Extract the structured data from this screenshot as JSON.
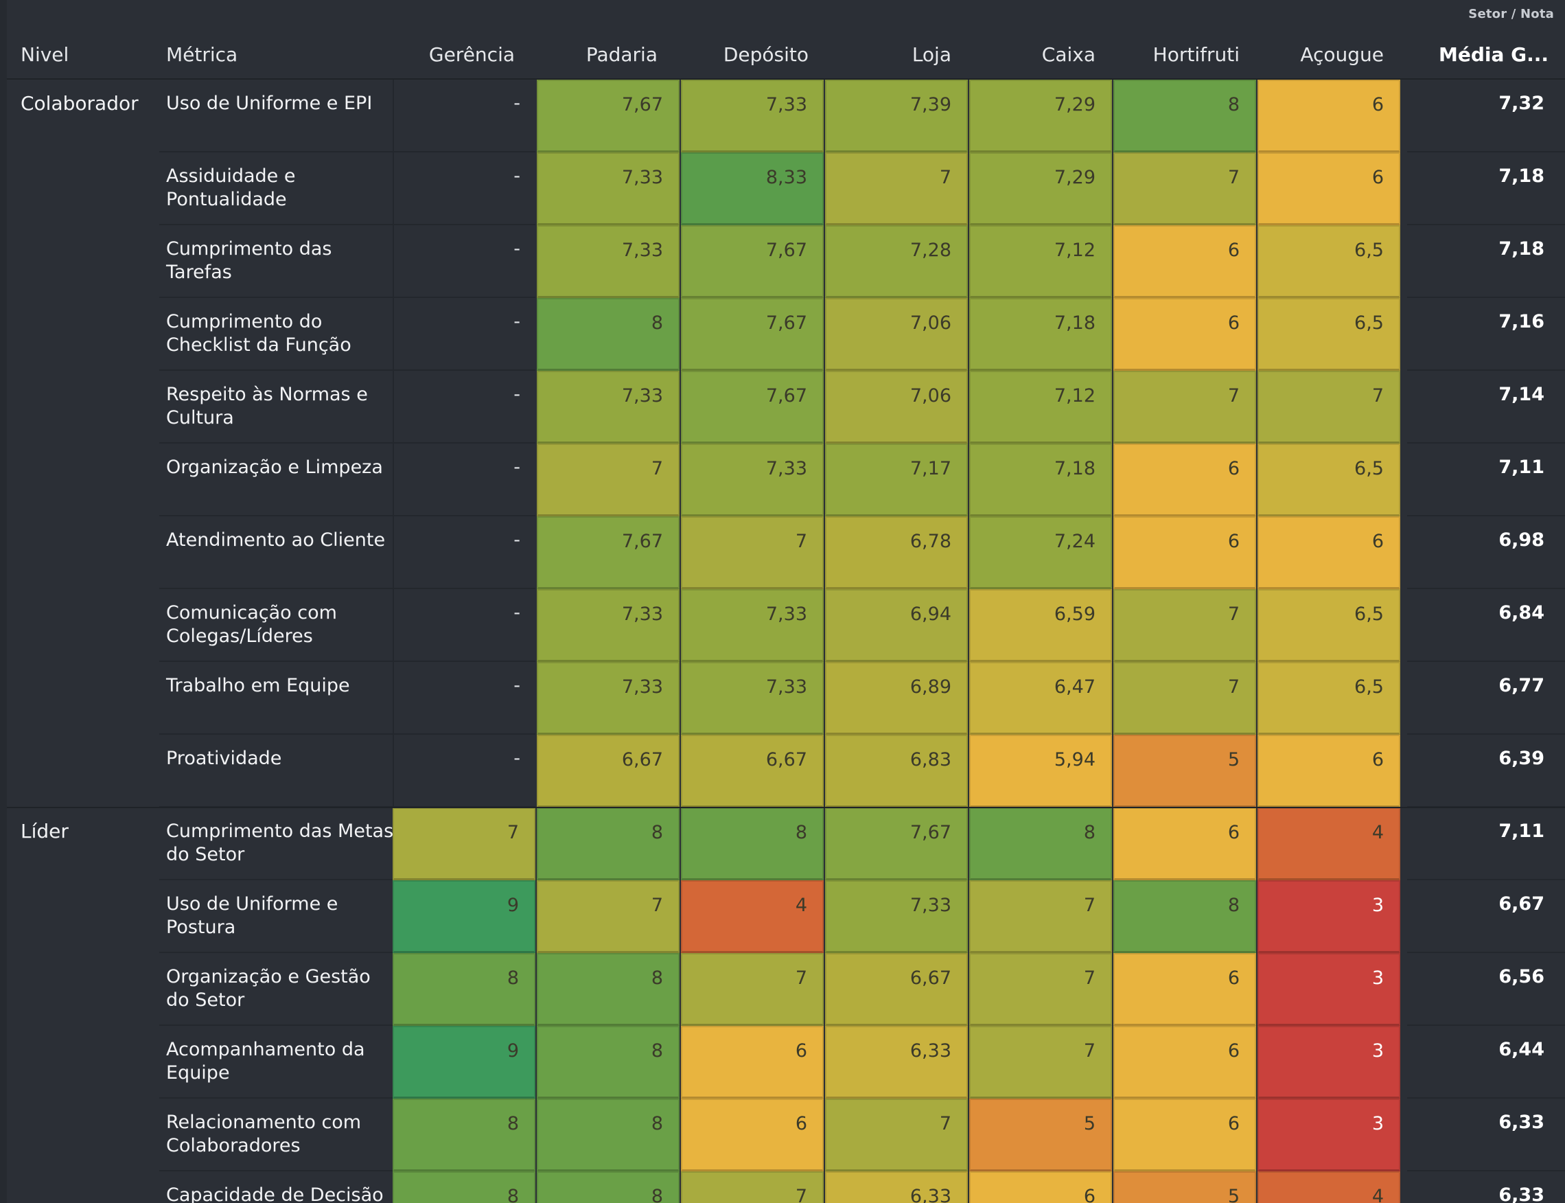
{
  "corner_label": "Setor / Nota",
  "headers": {
    "nivel": "Nivel",
    "metrica": "Métrica",
    "gerencia": "Gerência",
    "padaria": "Padaria",
    "deposito": "Depósito",
    "loja": "Loja",
    "caixa": "Caixa",
    "hortifruti": "Hortifruti",
    "acougue": "Açougue",
    "media": "Média G..."
  },
  "colors": {
    "background": "#2b2f36",
    "red": "#c9413c",
    "orange_red": "#d46737",
    "orange": "#df8e3a",
    "amber": "#e8b43f",
    "mustard": "#c9b23e",
    "olive_yellow": "#b3ad3d",
    "yellow_olive": "#a8ab3f",
    "olive": "#93a83f",
    "light_green": "#85a642",
    "green": "#6aa047",
    "strong_green": "#5a9d4b",
    "teal_green": "#3d9a5c"
  },
  "table": {
    "columns": [
      "gerencia",
      "padaria",
      "deposito",
      "loja",
      "caixa",
      "hortifruti",
      "acougue"
    ],
    "rows": [
      {
        "nivel": "Colaborador",
        "metric": "Uso de Uniforme e EPI",
        "values": [
          "-",
          "7,67",
          "7,33",
          "7,39",
          "7,29",
          "8",
          "6"
        ],
        "avg": "7,32"
      },
      {
        "nivel": "",
        "metric": "Assiduidade e Pontualidade",
        "values": [
          "-",
          "7,33",
          "8,33",
          "7",
          "7,29",
          "7",
          "6"
        ],
        "avg": "7,18"
      },
      {
        "nivel": "",
        "metric": "Cumprimento das Tarefas",
        "values": [
          "-",
          "7,33",
          "7,67",
          "7,28",
          "7,12",
          "6",
          "6,5"
        ],
        "avg": "7,18"
      },
      {
        "nivel": "",
        "metric": "Cumprimento do Checklist da Função",
        "values": [
          "-",
          "8",
          "7,67",
          "7,06",
          "7,18",
          "6",
          "6,5"
        ],
        "avg": "7,16"
      },
      {
        "nivel": "",
        "metric": "Respeito às Normas e Cultura",
        "values": [
          "-",
          "7,33",
          "7,67",
          "7,06",
          "7,12",
          "7",
          "7"
        ],
        "avg": "7,14"
      },
      {
        "nivel": "",
        "metric": "Organização e Limpeza",
        "values": [
          "-",
          "7",
          "7,33",
          "7,17",
          "7,18",
          "6",
          "6,5"
        ],
        "avg": "7,11"
      },
      {
        "nivel": "",
        "metric": "Atendimento ao Cliente",
        "values": [
          "-",
          "7,67",
          "7",
          "6,78",
          "7,24",
          "6",
          "6"
        ],
        "avg": "6,98"
      },
      {
        "nivel": "",
        "metric": "Comunicação com Colegas/Líderes",
        "values": [
          "-",
          "7,33",
          "7,33",
          "6,94",
          "6,59",
          "7",
          "6,5"
        ],
        "avg": "6,84"
      },
      {
        "nivel": "",
        "metric": "Trabalho em Equipe",
        "values": [
          "-",
          "7,33",
          "7,33",
          "6,89",
          "6,47",
          "7",
          "6,5"
        ],
        "avg": "6,77"
      },
      {
        "nivel": "",
        "metric": "Proatividade",
        "values": [
          "-",
          "6,67",
          "6,67",
          "6,83",
          "5,94",
          "5",
          "6"
        ],
        "avg": "6,39"
      },
      {
        "nivel": "Líder",
        "metric": "Cumprimento das Metas do Setor",
        "values": [
          "7",
          "8",
          "8",
          "7,67",
          "8",
          "6",
          "4"
        ],
        "avg": "7,11"
      },
      {
        "nivel": "",
        "metric": "Uso de Uniforme e Postura",
        "values": [
          "9",
          "7",
          "4",
          "7,33",
          "7",
          "8",
          "3"
        ],
        "avg": "6,67"
      },
      {
        "nivel": "",
        "metric": "Organização e Gestão do Setor",
        "values": [
          "8",
          "8",
          "7",
          "6,67",
          "7",
          "6",
          "3"
        ],
        "avg": "6,56"
      },
      {
        "nivel": "",
        "metric": "Acompanhamento da Equipe",
        "values": [
          "9",
          "8",
          "6",
          "6,33",
          "7",
          "6",
          "3"
        ],
        "avg": "6,44"
      },
      {
        "nivel": "",
        "metric": "Relacionamento com Colaboradores",
        "values": [
          "8",
          "8",
          "6",
          "7",
          "5",
          "6",
          "3"
        ],
        "avg": "6,33"
      },
      {
        "nivel": "",
        "metric": "Capacidade de Decisão e",
        "values": [
          "8",
          "8",
          "7",
          "6,33",
          "6",
          "5",
          "4"
        ],
        "avg": "6,33"
      }
    ]
  }
}
